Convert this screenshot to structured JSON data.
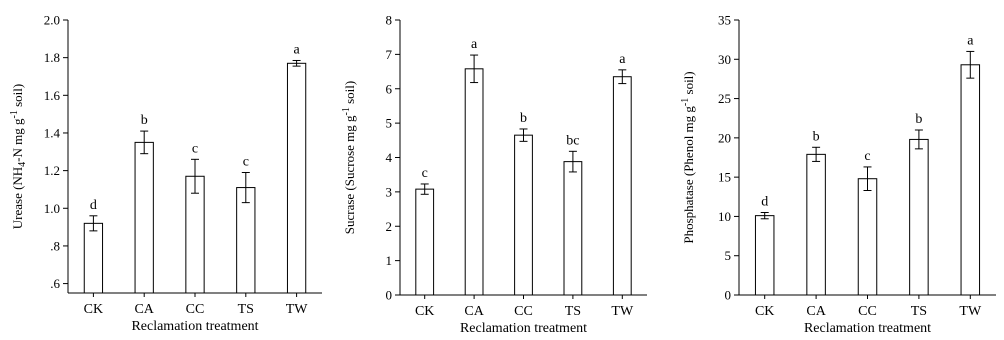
{
  "chart_data": [
    {
      "type": "bar",
      "ylabel_parts": [
        "Urease (NH",
        "4",
        "-N mg g",
        "-1",
        " soil)"
      ],
      "xlabel": "Reclamation treatment",
      "categories": [
        "CK",
        "CA",
        "CC",
        "TS",
        "TW"
      ],
      "values": [
        0.92,
        1.35,
        1.17,
        1.11,
        1.77
      ],
      "errors": [
        0.04,
        0.06,
        0.09,
        0.08,
        0.015
      ],
      "significance": [
        "d",
        "b",
        "c",
        "c",
        "a"
      ],
      "ylim": [
        0.55,
        2.0
      ],
      "yticks": [
        0.6,
        0.8,
        1.0,
        1.2,
        1.4,
        1.6,
        1.8,
        2.0
      ],
      "yticklabels": [
        ".6",
        ".8",
        "1.0",
        "1.2",
        "1.4",
        "1.6",
        "1.8",
        "2.0"
      ]
    },
    {
      "type": "bar",
      "ylabel_parts": [
        "Sucrase (Sucrose mg g",
        "-1",
        " soil)"
      ],
      "xlabel": "Reclamation treatment",
      "categories": [
        "CK",
        "CA",
        "CC",
        "TS",
        "TW"
      ],
      "values": [
        3.08,
        6.58,
        4.65,
        3.88,
        6.35
      ],
      "errors": [
        0.15,
        0.4,
        0.18,
        0.3,
        0.2
      ],
      "significance": [
        "c",
        "a",
        "b",
        "bc",
        "a"
      ],
      "ylim": [
        0,
        8
      ],
      "yticks": [
        0,
        1,
        2,
        3,
        4,
        5,
        6,
        7,
        8
      ],
      "yticklabels": [
        "0",
        "1",
        "2",
        "3",
        "4",
        "5",
        "6",
        "7",
        "8"
      ]
    },
    {
      "type": "bar",
      "ylabel_parts": [
        "Phosphatase (Phenol mg g",
        "-1",
        " soil)"
      ],
      "xlabel": "Reclamation treatment",
      "categories": [
        "CK",
        "CA",
        "CC",
        "TS",
        "TW"
      ],
      "values": [
        10.1,
        17.9,
        14.8,
        19.8,
        29.3
      ],
      "errors": [
        0.4,
        0.9,
        1.5,
        1.2,
        1.7
      ],
      "significance": [
        "d",
        "b",
        "c",
        "b",
        "a"
      ],
      "ylim": [
        0,
        35
      ],
      "yticks": [
        0,
        5,
        10,
        15,
        20,
        25,
        30,
        35
      ],
      "yticklabels": [
        "0",
        "5",
        "10",
        "15",
        "20",
        "25",
        "30",
        "35"
      ]
    }
  ]
}
